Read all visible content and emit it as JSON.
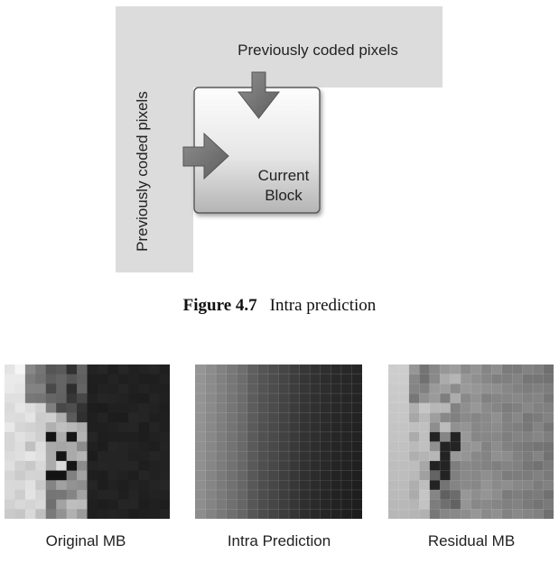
{
  "diagram": {
    "top_region_label": "Previously coded pixels",
    "left_region_label": "Previously coded pixels",
    "block_label_line1": "Current",
    "block_label_line2": "Block"
  },
  "figure_caption": {
    "number": "Figure 4.7",
    "title": "Intra prediction"
  },
  "panels": [
    {
      "label": "Original MB"
    },
    {
      "label": "Intra Prediction"
    },
    {
      "label": "Residual MB"
    }
  ],
  "colors": {
    "coded_region": "#dcdcdc",
    "arrow": "#7a7a7a",
    "block_top": "#fdfdfd",
    "block_bottom": "#b9b9b9"
  }
}
